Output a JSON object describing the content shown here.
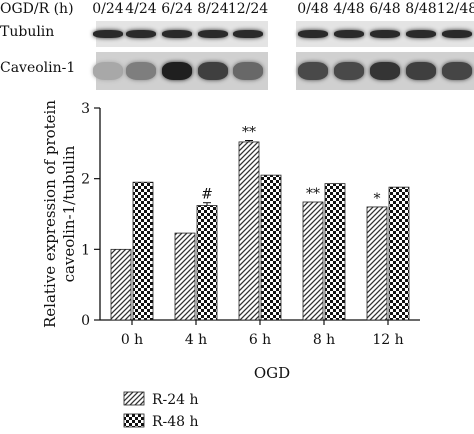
{
  "blot": {
    "condition_label": "OGD/R (h)",
    "lanes_24": [
      "0/24",
      "4/24",
      "6/24",
      "8/24",
      "12/24"
    ],
    "lanes_48": [
      "0/48",
      "4/48",
      "6/48",
      "8/48",
      "12/48"
    ],
    "rows": [
      {
        "label": "Tubulin",
        "intensity_24": [
          0.85,
          0.85,
          0.85,
          0.85,
          0.85
        ],
        "intensity_48": [
          0.85,
          0.85,
          0.85,
          0.85,
          0.85
        ]
      },
      {
        "label": "Caveolin-1",
        "intensity_24": [
          0.25,
          0.45,
          0.9,
          0.75,
          0.55
        ],
        "intensity_48": [
          0.7,
          0.7,
          0.8,
          0.75,
          0.72
        ]
      }
    ]
  },
  "chart_data": {
    "type": "bar",
    "categories": [
      "0 h",
      "4 h",
      "6 h",
      "8 h",
      "12 h"
    ],
    "series": [
      {
        "name": "R-24 h",
        "pattern": "diagonal-hatch",
        "values": [
          1.0,
          1.23,
          2.52,
          1.67,
          1.6
        ],
        "errors": [
          0.0,
          0.0,
          0.02,
          0.0,
          0.0
        ]
      },
      {
        "name": "R-48 h",
        "pattern": "checkerboard",
        "values": [
          1.95,
          1.62,
          2.05,
          1.93,
          1.88
        ],
        "errors": [
          0.0,
          0.04,
          0.0,
          0.0,
          0.0
        ]
      }
    ],
    "annotations": [
      {
        "category": "6 h",
        "series": "R-24 h",
        "text": "**"
      },
      {
        "category": "8 h",
        "series": "R-24 h",
        "text": "**"
      },
      {
        "category": "12 h",
        "series": "R-24 h",
        "text": "*"
      },
      {
        "category": "4 h",
        "series": "R-48 h",
        "text": "#"
      }
    ],
    "ylabel_line1": "Relative expression of protein",
    "ylabel_line2": "caveolin-1/tubulin",
    "xlabel": "OGD",
    "ylim": [
      0,
      3
    ],
    "yticks": [
      "0",
      "1",
      "2",
      "3"
    ],
    "grid": false,
    "legend_position": "bottom-left"
  }
}
